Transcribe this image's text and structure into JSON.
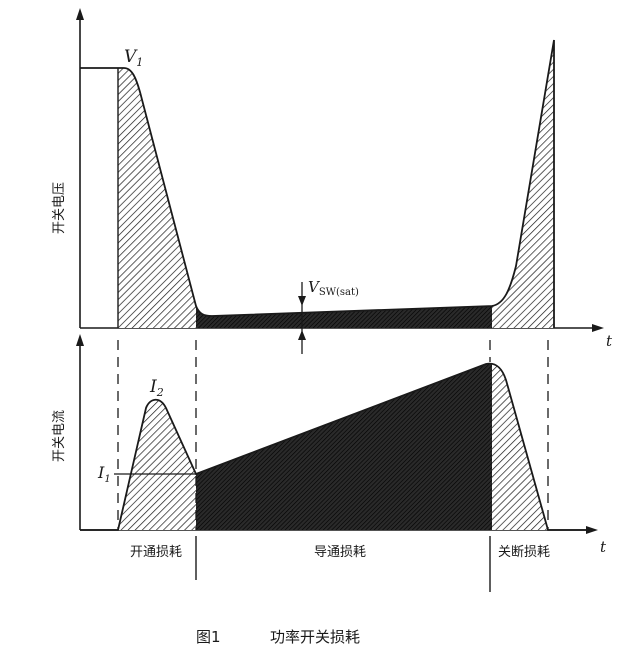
{
  "top_panel": {
    "ylabel": "开关电压",
    "xlabel": "t",
    "peak_label_main": "V",
    "peak_label_sub": "1",
    "sat_label_main": "V",
    "sat_label_sub": "SW(sat)"
  },
  "bottom_panel": {
    "ylabel": "开关电流",
    "xlabel": "t",
    "peak_label_main": "I",
    "peak_label_sub": "2",
    "level_label_main": "I",
    "level_label_sub": "1"
  },
  "phases": [
    {
      "label": "开通损耗"
    },
    {
      "label": "导通损耗"
    },
    {
      "label": "关断损耗"
    }
  ],
  "caption": {
    "number": "图1",
    "title": "功率开关损耗"
  },
  "colors": {
    "ink": "#1a1a1a",
    "background": "#ffffff"
  }
}
